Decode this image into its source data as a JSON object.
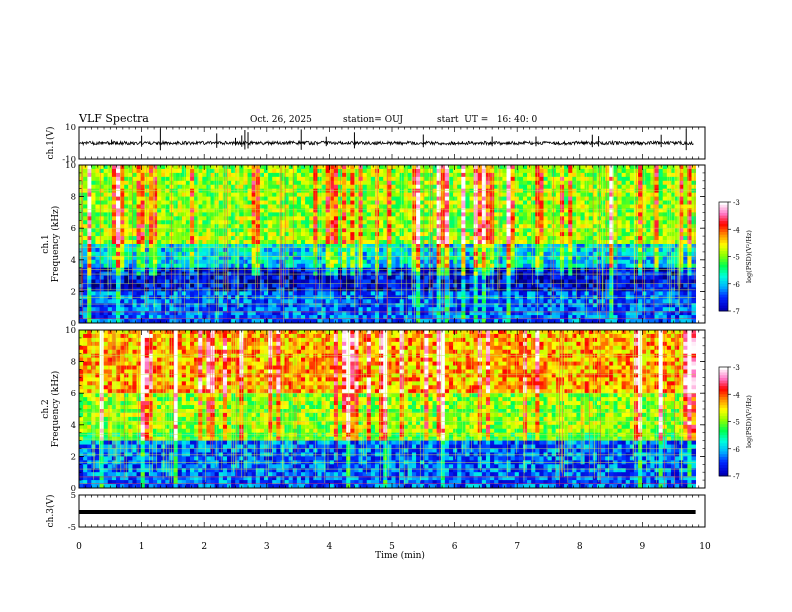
{
  "header": {
    "title": "VLF Spectra",
    "date": "Oct. 26, 2025",
    "station": "station= OUJ",
    "start_ut": "start  UT =   16: 40: 0"
  },
  "chart_data": [
    {
      "type": "line",
      "panel": "ch1-waveform",
      "ylabel": "ch.1(V)",
      "ylim": [
        -10,
        10
      ],
      "yticks": [
        "10",
        "-10"
      ],
      "xlim": [
        0,
        10
      ],
      "series": [
        {
          "values_note_mean": 0
        }
      ],
      "color": "#000000"
    },
    {
      "type": "heatmap",
      "panel": "ch1-spectrogram",
      "ylabel": "ch.1\nFrequency (kHz)",
      "ylim": [
        0,
        10
      ],
      "yticks": [
        "0",
        "2",
        "4",
        "6",
        "8",
        "10"
      ],
      "xlim": [
        0,
        9.85
      ],
      "colorbar": {
        "label": "log(PSD)(V²/Hz)",
        "range": [
          -7,
          -3
        ],
        "ticks": [
          "-3",
          "-4",
          "-5",
          "-6",
          "-7"
        ]
      }
    },
    {
      "type": "heatmap",
      "panel": "ch2-spectrogram",
      "ylabel": "ch.2\nFrequency (kHz)",
      "ylim": [
        0,
        10
      ],
      "yticks": [
        "0",
        "2",
        "4",
        "6",
        "8",
        "10"
      ],
      "xlim": [
        0,
        9.85
      ],
      "colorbar": {
        "label": "log(PSD)(V²/Hz)",
        "range": [
          -7,
          -3
        ],
        "ticks": [
          "-3",
          "-4",
          "-5",
          "-6",
          "-7"
        ]
      }
    },
    {
      "type": "line",
      "panel": "ch3-waveform",
      "ylabel": "ch.3(V)",
      "ylim": [
        -5,
        5
      ],
      "yticks": [
        "5",
        "-5"
      ],
      "xlim": [
        0,
        10
      ],
      "series": [
        {
          "values_note_constant": -0.3
        }
      ],
      "color": "#000000"
    }
  ],
  "xaxis": {
    "label": "Time (min)",
    "ticks": [
      "0",
      "1",
      "2",
      "3",
      "4",
      "5",
      "6",
      "7",
      "8",
      "9",
      "10"
    ]
  },
  "colors": {
    "frame": "#000000",
    "colormap": [
      "#000080",
      "#0000ff",
      "#00ffff",
      "#00ff00",
      "#ffff00",
      "#ff0000",
      "#ff80ff",
      "#ffffff"
    ]
  }
}
